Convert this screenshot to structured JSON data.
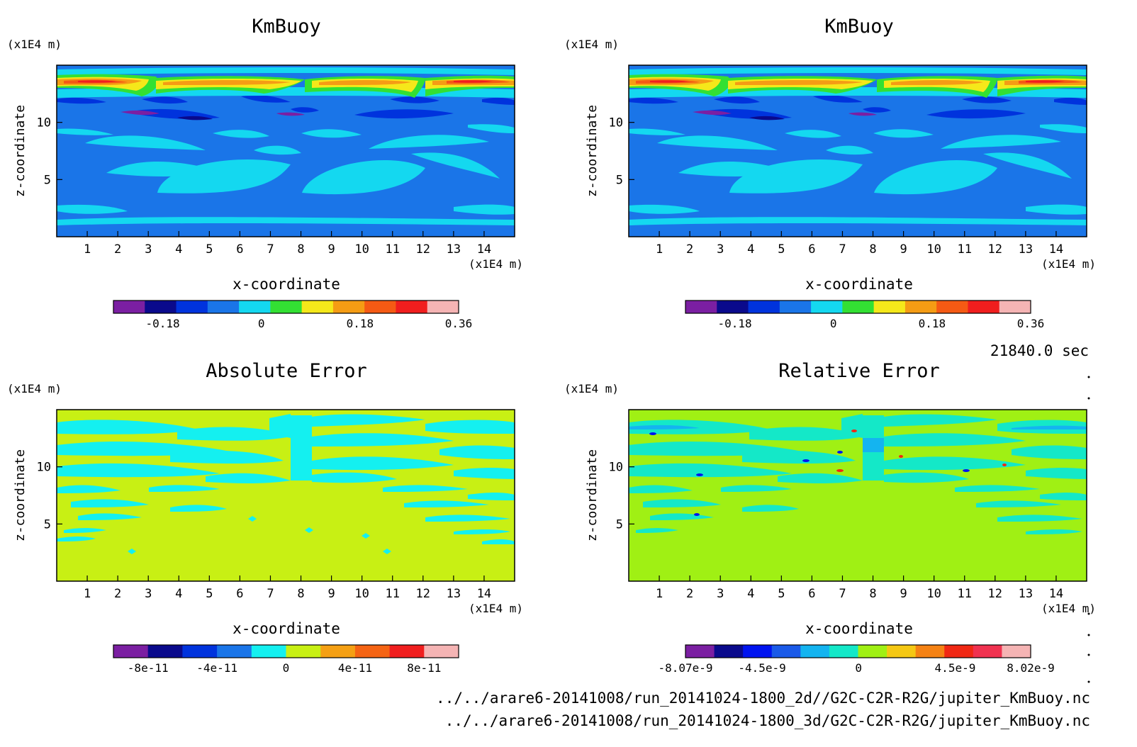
{
  "time_label": "21840.0 sec",
  "file_lines": [
    "../../arare6-20141008/run_20141024-1800_2d//G2C-C2R-R2G/jupiter_KmBuoy.nc",
    "../../arare6-20141008/run_20141024-1800_3d/G2C-C2R-R2G/jupiter_KmBuoy.nc"
  ],
  "chart_data": [
    {
      "type": "heatmap",
      "title": "KmBuoy",
      "xlabel": "x-coordinate",
      "ylabel": "z-coordinate",
      "x_unit": "(x1E4 m)",
      "z_unit": "(x1E4 m)",
      "x_ticks": [
        "1",
        "2",
        "3",
        "4",
        "5",
        "6",
        "7",
        "8",
        "9",
        "10",
        "11",
        "12",
        "13",
        "14"
      ],
      "z_ticks": [
        "5",
        "10"
      ],
      "xlim": [
        0,
        15
      ],
      "zlim": [
        0,
        15
      ],
      "colorbar": {
        "colors": [
          "#7b1fa2",
          "#0a0a8c",
          "#0033dd",
          "#1a75e8",
          "#14d8f0",
          "#33e033",
          "#f5e81a",
          "#f59c14",
          "#f55a14",
          "#f01e1e",
          "#f5b4b4"
        ],
        "tick_labels": [
          "-0.18",
          "0",
          "0.18",
          "0.36"
        ],
        "tick_values": [
          -0.18,
          0,
          0.18,
          0.36
        ],
        "range": [
          -0.27,
          0.36
        ]
      }
    },
    {
      "type": "heatmap",
      "title": "KmBuoy",
      "xlabel": "x-coordinate",
      "ylabel": "z-coordinate",
      "x_unit": "(x1E4 m)",
      "z_unit": "(x1E4 m)",
      "x_ticks": [
        "1",
        "2",
        "3",
        "4",
        "5",
        "6",
        "7",
        "8",
        "9",
        "10",
        "11",
        "12",
        "13",
        "14"
      ],
      "z_ticks": [
        "5",
        "10"
      ],
      "xlim": [
        0,
        15
      ],
      "zlim": [
        0,
        15
      ],
      "colorbar": {
        "colors": [
          "#7b1fa2",
          "#0a0a8c",
          "#0033dd",
          "#1a75e8",
          "#14d8f0",
          "#33e033",
          "#f5e81a",
          "#f59c14",
          "#f55a14",
          "#f01e1e",
          "#f5b4b4"
        ],
        "tick_labels": [
          "-0.18",
          "0",
          "0.18",
          "0.36"
        ],
        "tick_values": [
          -0.18,
          0,
          0.18,
          0.36
        ],
        "range": [
          -0.27,
          0.36
        ]
      }
    },
    {
      "type": "heatmap",
      "title": "Absolute Error",
      "xlabel": "x-coordinate",
      "ylabel": "z-coordinate",
      "x_unit": "(x1E4 m)",
      "z_unit": "(x1E4 m)",
      "x_ticks": [
        "1",
        "2",
        "3",
        "4",
        "5",
        "6",
        "7",
        "8",
        "9",
        "10",
        "11",
        "12",
        "13",
        "14"
      ],
      "z_ticks": [
        "5",
        "10"
      ],
      "xlim": [
        0,
        15
      ],
      "zlim": [
        0,
        15
      ],
      "colorbar": {
        "colors": [
          "#7b1fa2",
          "#0a0a8c",
          "#0033dd",
          "#1a75e8",
          "#14f0f0",
          "#c8f014",
          "#f5a014",
          "#f56414",
          "#f01e1e",
          "#f5b4b4"
        ],
        "tick_labels": [
          "-8e-11",
          "-4e-11",
          "0",
          "4e-11",
          "8e-11"
        ],
        "tick_values": [
          -8e-11,
          -4e-11,
          0,
          4e-11,
          8e-11
        ],
        "range": [
          -1e-10,
          1e-10
        ]
      }
    },
    {
      "type": "heatmap",
      "title": "Relative Error",
      "xlabel": "x-coordinate",
      "ylabel": "z-coordinate",
      "x_unit": "(x1E4 m)",
      "z_unit": "(x1E4 m)",
      "x_ticks": [
        "1",
        "2",
        "3",
        "4",
        "5",
        "6",
        "7",
        "8",
        "9",
        "10",
        "11",
        "12",
        "13",
        "14"
      ],
      "z_ticks": [
        "5",
        "10"
      ],
      "xlim": [
        0,
        15
      ],
      "zlim": [
        0,
        15
      ],
      "colorbar": {
        "colors": [
          "#7b1fa2",
          "#0a0a8c",
          "#0014f0",
          "#1a5ae8",
          "#14b4f0",
          "#14e8c8",
          "#a0f014",
          "#f5c814",
          "#f58214",
          "#f02814",
          "#f03250",
          "#f5b4b4"
        ],
        "tick_labels": [
          "-8.07e-9",
          "-4.5e-9",
          "0",
          "4.5e-9",
          "8.02e-9"
        ],
        "tick_values": [
          -8.07e-09,
          -4.5e-09,
          0,
          4.5e-09,
          8.02e-09
        ],
        "range": [
          -8.07e-09,
          8.02e-09
        ]
      }
    }
  ]
}
